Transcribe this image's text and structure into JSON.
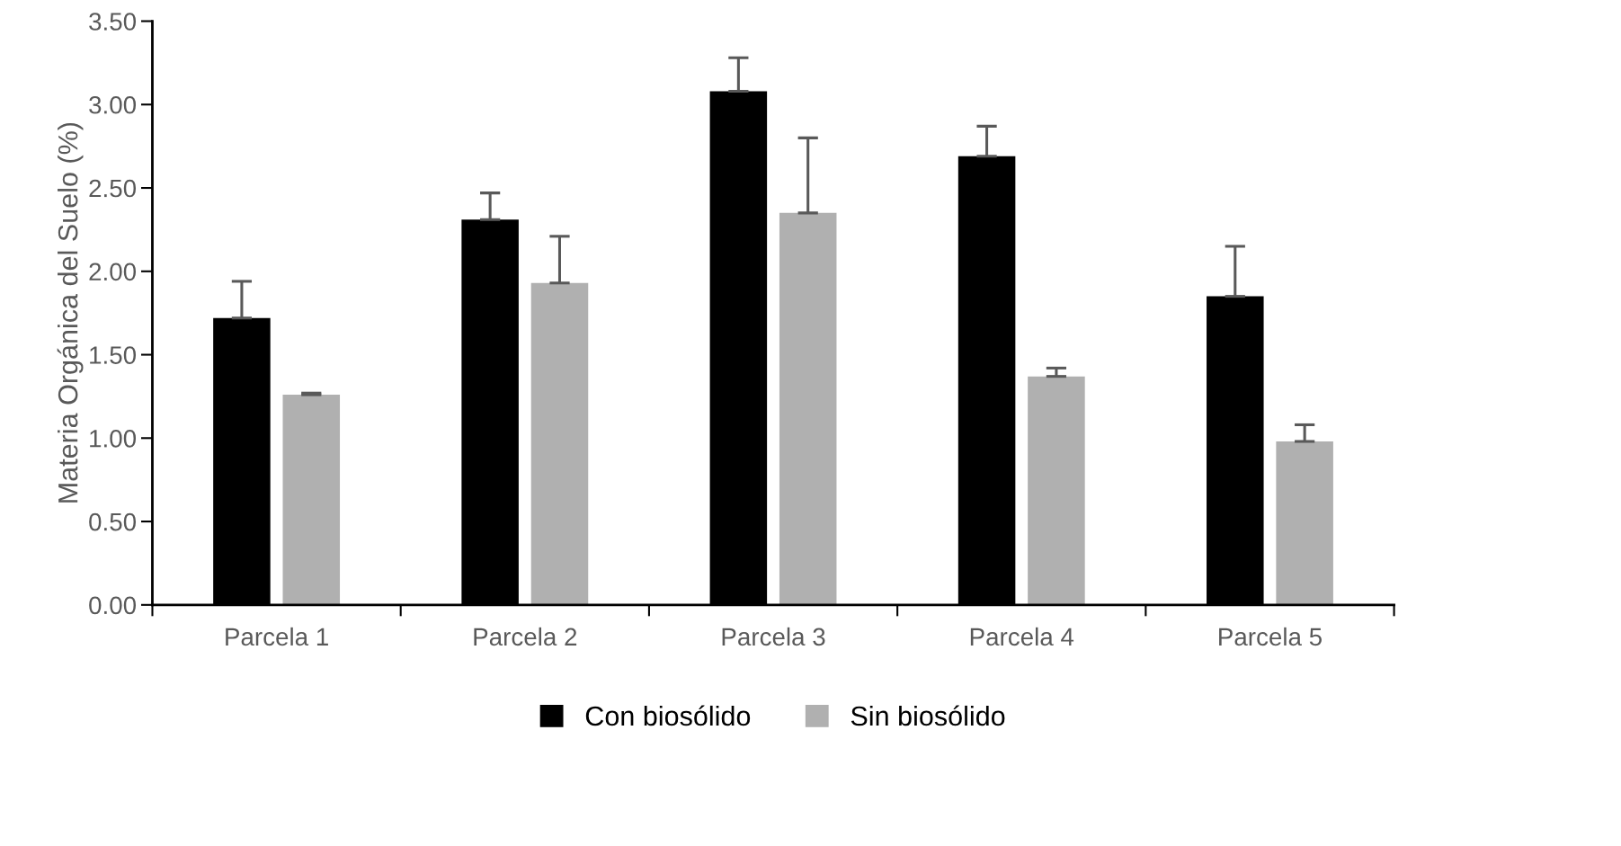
{
  "chart_data": {
    "type": "bar",
    "ylabel": "Materia Orgánica del Suelo (%)",
    "categories": [
      "Parcela 1",
      "Parcela 2",
      "Parcela 3",
      "Parcela 4",
      "Parcela 5"
    ],
    "series": [
      {
        "name": "Con biosólido",
        "color": "#000000",
        "values": [
          1.72,
          2.31,
          3.08,
          2.69,
          1.85
        ],
        "errors": [
          [
            1.72,
            1.94
          ],
          [
            2.31,
            2.47
          ],
          [
            3.08,
            3.28
          ],
          [
            2.69,
            2.87
          ],
          [
            1.85,
            2.15
          ]
        ]
      },
      {
        "name": "Sin biosólido",
        "color": "#b0b0b0",
        "values": [
          1.26,
          1.93,
          2.35,
          1.37,
          0.98
        ],
        "errors": [
          [
            1.26,
            1.27
          ],
          [
            1.93,
            2.21
          ],
          [
            2.35,
            2.8
          ],
          [
            1.37,
            1.42
          ],
          [
            0.98,
            1.08
          ]
        ]
      }
    ],
    "ylim": [
      0,
      3.5
    ],
    "yticks": [
      {
        "value": 0,
        "label": "0.00"
      },
      {
        "value": 0.5,
        "label": "0.50"
      },
      {
        "value": 1,
        "label": "1.00"
      },
      {
        "value": 1.5,
        "label": "1.50"
      },
      {
        "value": 2,
        "label": "2.00"
      },
      {
        "value": 2.5,
        "label": "2.50"
      },
      {
        "value": 3,
        "label": "3.00"
      },
      {
        "value": 3.5,
        "label": "3.50"
      }
    ],
    "grid": false,
    "legend": "bottom"
  }
}
